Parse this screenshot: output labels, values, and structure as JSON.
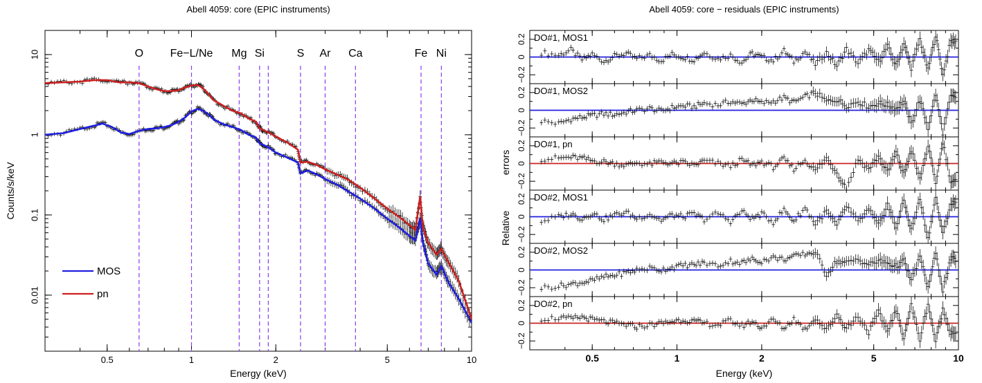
{
  "chart_data": [
    {
      "type": "line",
      "title": "Abell 4059: core (EPIC instruments)",
      "xlabel": "Energy (keV)",
      "ylabel": "Counts/s/keV",
      "xscale": "log",
      "yscale": "log",
      "xlim": [
        0.3,
        10
      ],
      "ylim": [
        0.002,
        20
      ],
      "x_ticks": [
        0.5,
        1,
        2,
        5,
        10
      ],
      "x_tick_labels": [
        "0.5",
        "1",
        "2",
        "5",
        "10"
      ],
      "y_ticks": [
        0.01,
        0.1,
        1,
        10
      ],
      "y_tick_labels": [
        "0.01",
        "0.1",
        "1",
        "10"
      ],
      "grid": false,
      "legend_position": "bottom-left",
      "line_markers": [
        {
          "label": "O",
          "energy": 0.65
        },
        {
          "label": "Fe−L/Ne",
          "energy": 1.0
        },
        {
          "label": "Mg",
          "energy": 1.48
        },
        {
          "label": "Si",
          "energy": 1.75
        },
        {
          "label": "Si",
          "energy": 1.88,
          "label_hidden": true
        },
        {
          "label": "S",
          "energy": 2.45
        },
        {
          "label": "Ar",
          "energy": 3.0
        },
        {
          "label": "Ca",
          "energy": 3.85
        },
        {
          "label": "Fe",
          "energy": 6.6
        },
        {
          "label": "Ni",
          "energy": 7.8
        }
      ],
      "series": [
        {
          "name": "MOS",
          "color": "#1f1fe0",
          "points": [
            [
              0.3,
              1.0
            ],
            [
              0.35,
              1.05
            ],
            [
              0.4,
              1.18
            ],
            [
              0.45,
              1.3
            ],
            [
              0.48,
              1.38
            ],
            [
              0.52,
              1.25
            ],
            [
              0.56,
              1.07
            ],
            [
              0.6,
              1.02
            ],
            [
              0.65,
              1.12
            ],
            [
              0.7,
              1.18
            ],
            [
              0.75,
              1.2
            ],
            [
              0.8,
              1.25
            ],
            [
              0.85,
              1.32
            ],
            [
              0.9,
              1.45
            ],
            [
              0.95,
              1.65
            ],
            [
              1.0,
              1.95
            ],
            [
              1.05,
              2.1
            ],
            [
              1.1,
              2.0
            ],
            [
              1.15,
              1.8
            ],
            [
              1.2,
              1.55
            ],
            [
              1.3,
              1.35
            ],
            [
              1.4,
              1.25
            ],
            [
              1.5,
              1.15
            ],
            [
              1.6,
              1.0
            ],
            [
              1.7,
              0.92
            ],
            [
              1.75,
              0.78
            ],
            [
              1.8,
              0.75
            ],
            [
              1.9,
              0.68
            ],
            [
              2.0,
              0.6
            ],
            [
              2.2,
              0.52
            ],
            [
              2.4,
              0.45
            ],
            [
              2.45,
              0.33
            ],
            [
              2.6,
              0.36
            ],
            [
              2.8,
              0.32
            ],
            [
              3.0,
              0.28
            ],
            [
              3.3,
              0.24
            ],
            [
              3.6,
              0.2
            ],
            [
              4.0,
              0.16
            ],
            [
              4.5,
              0.12
            ],
            [
              5.0,
              0.09
            ],
            [
              5.5,
              0.07
            ],
            [
              6.0,
              0.055
            ],
            [
              6.3,
              0.048
            ],
            [
              6.55,
              0.09
            ],
            [
              6.7,
              0.045
            ],
            [
              7.0,
              0.025
            ],
            [
              7.5,
              0.018
            ],
            [
              7.8,
              0.023
            ],
            [
              8.3,
              0.014
            ],
            [
              9.0,
              0.009
            ],
            [
              10.0,
              0.0045
            ]
          ]
        },
        {
          "name": "pn",
          "color": "#cc2020",
          "points": [
            [
              0.3,
              4.4
            ],
            [
              0.35,
              4.5
            ],
            [
              0.4,
              4.6
            ],
            [
              0.45,
              4.8
            ],
            [
              0.5,
              4.8
            ],
            [
              0.55,
              4.5
            ],
            [
              0.6,
              4.5
            ],
            [
              0.65,
              4.4
            ],
            [
              0.7,
              4.0
            ],
            [
              0.75,
              3.7
            ],
            [
              0.8,
              3.5
            ],
            [
              0.85,
              3.5
            ],
            [
              0.9,
              3.6
            ],
            [
              0.95,
              3.9
            ],
            [
              1.0,
              4.1
            ],
            [
              1.05,
              4.2
            ],
            [
              1.1,
              3.8
            ],
            [
              1.15,
              3.2
            ],
            [
              1.2,
              2.7
            ],
            [
              1.3,
              2.3
            ],
            [
              1.4,
              2.0
            ],
            [
              1.5,
              1.85
            ],
            [
              1.6,
              1.6
            ],
            [
              1.7,
              1.45
            ],
            [
              1.75,
              1.2
            ],
            [
              1.8,
              1.15
            ],
            [
              1.9,
              1.05
            ],
            [
              2.0,
              0.95
            ],
            [
              2.2,
              0.8
            ],
            [
              2.4,
              0.65
            ],
            [
              2.45,
              0.45
            ],
            [
              2.6,
              0.46
            ],
            [
              2.8,
              0.42
            ],
            [
              3.0,
              0.37
            ],
            [
              3.3,
              0.32
            ],
            [
              3.6,
              0.28
            ],
            [
              4.0,
              0.22
            ],
            [
              4.5,
              0.16
            ],
            [
              5.0,
              0.12
            ],
            [
              5.5,
              0.095
            ],
            [
              6.0,
              0.075
            ],
            [
              6.3,
              0.065
            ],
            [
              6.55,
              0.17
            ],
            [
              6.7,
              0.07
            ],
            [
              7.0,
              0.045
            ],
            [
              7.5,
              0.032
            ],
            [
              7.8,
              0.038
            ],
            [
              8.3,
              0.025
            ],
            [
              9.0,
              0.015
            ],
            [
              10.0,
              0.005
            ]
          ]
        }
      ]
    },
    {
      "type": "scatter",
      "title": "Abell 4059: core − residuals (EPIC instruments)",
      "xlabel": "Energy (keV)",
      "ylabel": "Relative errors",
      "xscale": "log",
      "xlim": [
        0.3,
        10
      ],
      "x_ticks": [
        0.5,
        1,
        2,
        5,
        10
      ],
      "x_tick_labels": [
        "0.5",
        "1",
        "2",
        "5",
        "10"
      ],
      "panel_ylim": [
        -0.3,
        0.3
      ],
      "y_ticks": [
        -0.2,
        0,
        0.2
      ],
      "y_tick_labels": [
        "−0.2",
        "0",
        "0.2"
      ],
      "grid": false,
      "panels": [
        {
          "label": "DO#1, MOS1",
          "color": "#1f1fe0",
          "x": [
            0.33,
            0.38,
            0.42,
            0.46,
            0.5,
            0.55,
            0.6,
            0.66,
            0.72,
            0.8,
            0.88,
            0.96,
            1.05,
            1.15,
            1.25,
            1.4,
            1.55,
            1.7,
            1.85,
            2.0,
            2.2,
            2.4,
            2.6,
            2.85,
            3.1,
            3.4,
            3.7,
            4.0,
            4.4,
            4.8,
            5.2,
            5.6,
            6.0,
            6.4,
            6.8,
            7.3,
            7.8,
            8.3,
            8.8,
            9.4
          ],
          "y": [
            0.05,
            0.02,
            0.08,
            -0.03,
            0.03,
            -0.05,
            0.01,
            0.04,
            -0.02,
            0.02,
            -0.04,
            0.03,
            0.0,
            -0.03,
            0.05,
            -0.02,
            0.02,
            -0.06,
            0.04,
            0.0,
            -0.04,
            0.07,
            -0.05,
            0.06,
            -0.08,
            0.05,
            -0.1,
            0.09,
            -0.07,
            0.08,
            -0.05,
            0.12,
            -0.1,
            0.15,
            -0.12,
            0.2,
            -0.15,
            0.25,
            -0.2,
            0.18
          ]
        },
        {
          "label": "DO#1, MOS2",
          "color": "#1f1fe0",
          "x": [
            0.33,
            0.38,
            0.42,
            0.46,
            0.5,
            0.55,
            0.6,
            0.66,
            0.72,
            0.8,
            0.88,
            0.96,
            1.05,
            1.15,
            1.25,
            1.4,
            1.55,
            1.7,
            1.85,
            2.0,
            2.2,
            2.4,
            2.6,
            2.85,
            3.1,
            3.4,
            3.7,
            4.0,
            4.4,
            4.8,
            5.2,
            5.6,
            6.0,
            6.4,
            6.8,
            7.3,
            7.8,
            8.3,
            8.8,
            9.4
          ],
          "y": [
            -0.12,
            -0.15,
            -0.1,
            -0.08,
            -0.06,
            -0.04,
            -0.05,
            -0.02,
            0.0,
            0.02,
            -0.01,
            0.03,
            0.05,
            0.04,
            0.08,
            0.06,
            0.1,
            0.07,
            0.12,
            0.08,
            0.1,
            0.14,
            0.09,
            0.15,
            0.2,
            0.1,
            0.12,
            0.05,
            0.1,
            0.04,
            0.08,
            0.06,
            0.02,
            0.1,
            -0.15,
            0.12,
            -0.2,
            0.18,
            -0.25,
            0.15
          ]
        },
        {
          "label": "DO#1, pn",
          "color": "#cc2020",
          "x": [
            0.33,
            0.38,
            0.42,
            0.46,
            0.5,
            0.55,
            0.6,
            0.66,
            0.72,
            0.8,
            0.88,
            0.96,
            1.05,
            1.15,
            1.25,
            1.4,
            1.55,
            1.7,
            1.85,
            2.0,
            2.2,
            2.4,
            2.6,
            2.85,
            3.1,
            3.4,
            3.7,
            4.0,
            4.4,
            4.8,
            5.2,
            5.6,
            6.0,
            6.4,
            6.8,
            7.3,
            7.8,
            8.3,
            8.8,
            9.4
          ],
          "y": [
            0.05,
            0.06,
            0.07,
            0.06,
            0.03,
            0.02,
            0.0,
            -0.02,
            0.01,
            -0.01,
            0.02,
            0.0,
            0.01,
            -0.02,
            0.03,
            0.0,
            -0.03,
            0.04,
            -0.02,
            0.02,
            -0.04,
            0.05,
            -0.06,
            0.04,
            -0.08,
            0.06,
            -0.1,
            -0.28,
            0.05,
            -0.06,
            0.08,
            -0.1,
            0.12,
            -0.12,
            0.15,
            -0.18,
            0.2,
            -0.22,
            0.25,
            -0.2
          ]
        },
        {
          "label": "DO#2, MOS1",
          "color": "#1f1fe0",
          "x": [
            0.33,
            0.38,
            0.42,
            0.46,
            0.5,
            0.55,
            0.6,
            0.66,
            0.72,
            0.8,
            0.88,
            0.96,
            1.05,
            1.15,
            1.25,
            1.4,
            1.55,
            1.7,
            1.85,
            2.0,
            2.2,
            2.4,
            2.6,
            2.85,
            3.1,
            3.4,
            3.7,
            4.0,
            4.4,
            4.8,
            5.2,
            5.6,
            6.0,
            6.4,
            6.8,
            7.3,
            7.8,
            8.3,
            8.8,
            9.4
          ],
          "y": [
            -0.05,
            0.0,
            0.03,
            -0.02,
            0.04,
            -0.03,
            0.02,
            0.05,
            -0.02,
            0.03,
            -0.04,
            0.02,
            0.0,
            0.03,
            -0.03,
            0.04,
            -0.05,
            0.06,
            -0.02,
            0.03,
            -0.06,
            0.08,
            -0.05,
            0.1,
            -0.08,
            0.06,
            -0.1,
            0.12,
            -0.06,
            0.08,
            -0.1,
            0.14,
            -0.12,
            0.18,
            -0.15,
            0.2,
            -0.25,
            0.22,
            -0.2,
            0.15
          ]
        },
        {
          "label": "DO#2, MOS2",
          "color": "#1f1fe0",
          "x": [
            0.33,
            0.38,
            0.42,
            0.46,
            0.5,
            0.55,
            0.6,
            0.66,
            0.72,
            0.8,
            0.88,
            0.96,
            1.05,
            1.15,
            1.25,
            1.4,
            1.55,
            1.7,
            1.85,
            2.0,
            2.2,
            2.4,
            2.6,
            2.85,
            3.1,
            3.4,
            3.7,
            4.0,
            4.4,
            4.8,
            5.2,
            5.6,
            6.0,
            6.4,
            6.8,
            7.3,
            7.8,
            8.3,
            8.8,
            9.4
          ],
          "y": [
            -0.2,
            -0.18,
            -0.16,
            -0.14,
            -0.12,
            -0.08,
            -0.06,
            -0.03,
            0.0,
            0.02,
            0.0,
            0.03,
            0.05,
            0.06,
            0.08,
            0.05,
            0.1,
            0.08,
            0.12,
            0.1,
            0.14,
            0.12,
            0.15,
            0.18,
            0.2,
            -0.05,
            0.1,
            0.08,
            0.12,
            0.06,
            0.1,
            0.08,
            0.04,
            0.1,
            -0.12,
            0.15,
            -0.2,
            0.18,
            -0.22,
            0.12
          ]
        },
        {
          "label": "DO#2, pn",
          "color": "#cc2020",
          "x": [
            0.33,
            0.38,
            0.42,
            0.46,
            0.5,
            0.55,
            0.6,
            0.66,
            0.72,
            0.8,
            0.88,
            0.96,
            1.05,
            1.15,
            1.25,
            1.4,
            1.55,
            1.7,
            1.85,
            2.0,
            2.2,
            2.4,
            2.6,
            2.85,
            3.1,
            3.4,
            3.7,
            4.0,
            4.4,
            4.8,
            5.2,
            5.6,
            6.0,
            6.4,
            6.8,
            7.3,
            7.8,
            8.3,
            8.8,
            9.4
          ],
          "y": [
            0.05,
            0.06,
            0.05,
            0.07,
            0.04,
            0.02,
            0.0,
            -0.02,
            -0.04,
            -0.02,
            0.0,
            0.02,
            0.04,
            0.02,
            0.0,
            -0.02,
            0.03,
            -0.03,
            0.02,
            -0.05,
            0.04,
            -0.06,
            0.05,
            -0.07,
            0.06,
            -0.08,
            0.1,
            -0.06,
            0.08,
            -0.1,
            0.12,
            -0.08,
            0.14,
            -0.15,
            0.2,
            -0.18,
            0.22,
            -0.2,
            0.15,
            -0.1
          ]
        }
      ]
    }
  ]
}
